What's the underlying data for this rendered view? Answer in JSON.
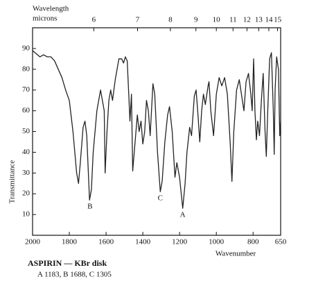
{
  "chart_data": {
    "type": "line",
    "title": "ASPIRIN — KBr disk",
    "subtitle": "A 1183, B 1688, C 1305",
    "top_axis_label": [
      "Wavelength",
      "microns"
    ],
    "xlabel": "Wavenumber",
    "ylabel": "Transmittance",
    "xlim": [
      2000,
      650
    ],
    "ylim": [
      0,
      100
    ],
    "xticks": [
      2000,
      1800,
      1600,
      1400,
      1200,
      1000,
      800,
      650
    ],
    "yticks": [
      10,
      20,
      30,
      40,
      50,
      60,
      70,
      80,
      90
    ],
    "x2ticks": [
      6,
      7,
      8,
      9,
      10,
      11,
      12,
      13,
      14,
      15
    ],
    "series": [
      {
        "name": "Aspirin",
        "color": "#222222",
        "x": [
          2000,
          1960,
          1940,
          1920,
          1900,
          1880,
          1860,
          1840,
          1820,
          1800,
          1780,
          1760,
          1750,
          1740,
          1725,
          1715,
          1705,
          1690,
          1680,
          1670,
          1650,
          1630,
          1610,
          1605,
          1595,
          1585,
          1575,
          1565,
          1550,
          1530,
          1515,
          1505,
          1495,
          1485,
          1475,
          1470,
          1462,
          1455,
          1445,
          1430,
          1420,
          1410,
          1400,
          1390,
          1380,
          1370,
          1360,
          1345,
          1335,
          1320,
          1305,
          1295,
          1280,
          1265,
          1255,
          1240,
          1225,
          1215,
          1200,
          1183,
          1170,
          1160,
          1145,
          1135,
          1120,
          1110,
          1100,
          1090,
          1080,
          1070,
          1060,
          1045,
          1040,
          1030,
          1015,
          1000,
          985,
          970,
          955,
          940,
          925,
          915,
          905,
          890,
          875,
          860,
          850,
          838,
          825,
          812,
          805,
          797,
          790,
          782,
          775,
          765,
          755,
          745,
          735,
          728,
          720,
          710,
          700,
          690,
          685,
          680,
          672,
          662,
          655,
          650
        ],
        "values": [
          89,
          86,
          87,
          86,
          86,
          84,
          80,
          76,
          70,
          65,
          50,
          30,
          25,
          35,
          52,
          55,
          48,
          17,
          22,
          40,
          60,
          70,
          60,
          30,
          50,
          65,
          70,
          65,
          75,
          85,
          85,
          83,
          86,
          84,
          65,
          55,
          68,
          31,
          42,
          58,
          50,
          55,
          44,
          50,
          65,
          60,
          48,
          73,
          68,
          40,
          21,
          26,
          45,
          58,
          62,
          50,
          28,
          35,
          28,
          13,
          25,
          40,
          52,
          48,
          67,
          70,
          58,
          45,
          60,
          68,
          63,
          72,
          74,
          60,
          48,
          68,
          76,
          72,
          76,
          68,
          45,
          26,
          50,
          70,
          75,
          66,
          60,
          74,
          78,
          68,
          60,
          85,
          60,
          46,
          55,
          48,
          65,
          78,
          50,
          38,
          60,
          85,
          88,
          60,
          39,
          70,
          86,
          80,
          48,
          55
        ]
      }
    ],
    "annotations": [
      {
        "text": "A",
        "x": 1183,
        "y": 13
      },
      {
        "text": "B",
        "x": 1688,
        "y": 17
      },
      {
        "text": "C",
        "x": 1305,
        "y": 21
      }
    ],
    "grid": false
  }
}
